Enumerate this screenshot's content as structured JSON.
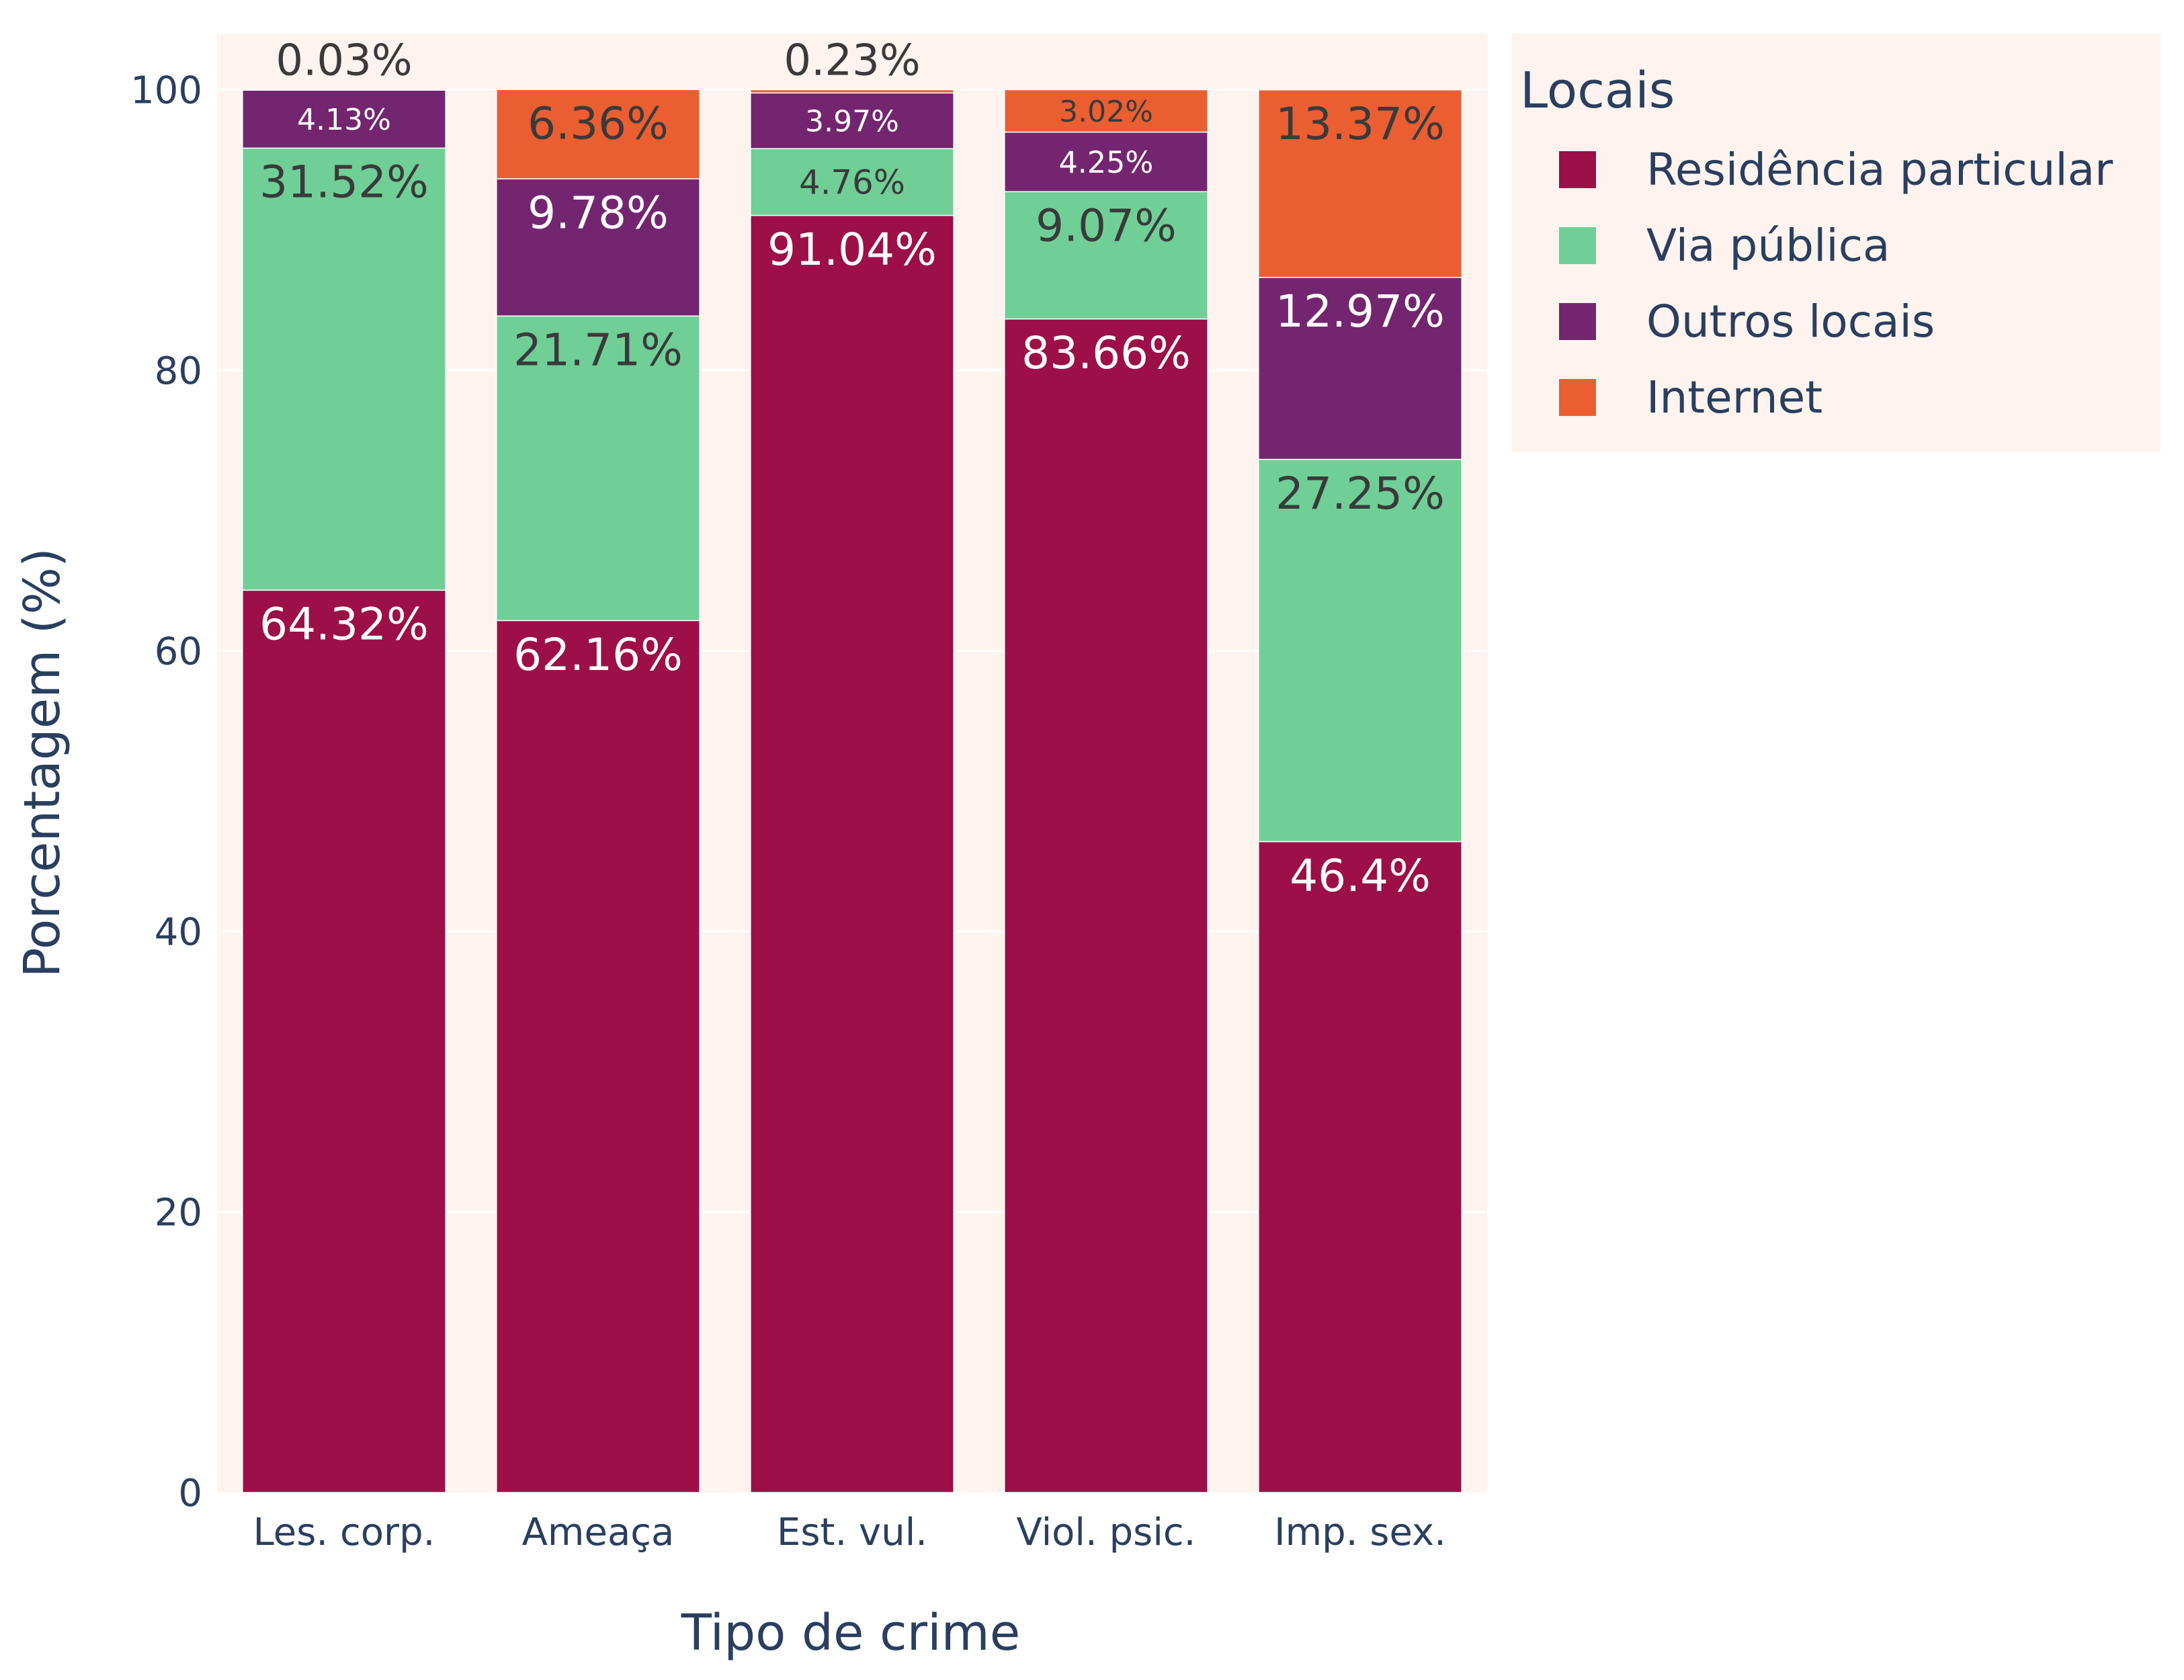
{
  "chart_data": {
    "type": "bar",
    "barmode": "stack",
    "categories": [
      "Les. corp.",
      "Ameaça",
      "Est. vul.",
      "Viol. psic.",
      "Imp. sex."
    ],
    "xlabel": "Tipo de crime",
    "ylabel": "Porcentagem (%)",
    "ylim": [
      0,
      104
    ],
    "yticks": [
      0,
      20,
      40,
      60,
      80,
      100
    ],
    "grid": true,
    "legend_title": "Locais",
    "legend_position": "top-right, outside",
    "plot_bg_color": "#fef3ee",
    "series": [
      {
        "name": "Residência particular",
        "color": "#9c1047",
        "label_color": "#ffffff",
        "values": [
          64.32,
          62.16,
          91.04,
          83.66,
          46.4
        ],
        "labels": [
          "64.32%",
          "62.16%",
          "91.04%",
          "83.66%",
          "46.4%"
        ]
      },
      {
        "name": "Via pública",
        "color": "#70cf97",
        "label_color": "#3a3a3a",
        "values": [
          31.52,
          21.71,
          4.76,
          9.07,
          27.25
        ],
        "labels": [
          "31.52%",
          "21.71%",
          "4.76%",
          "9.07%",
          "27.25%"
        ]
      },
      {
        "name": "Outros locais",
        "color": "#73266f",
        "label_color": "#ffffff",
        "values": [
          4.13,
          9.78,
          3.97,
          4.25,
          12.97
        ],
        "labels": [
          "4.13%",
          "9.78%",
          "3.97%",
          "4.25%",
          "12.97%"
        ]
      },
      {
        "name": "Internet",
        "color": "#ea5e31",
        "label_color": "#3a3a3a",
        "values": [
          0.03,
          6.36,
          0.23,
          3.02,
          13.37
        ],
        "labels": [
          "0.03%",
          "6.36%",
          "0.23%",
          "3.02%",
          "13.37%"
        ]
      }
    ]
  }
}
